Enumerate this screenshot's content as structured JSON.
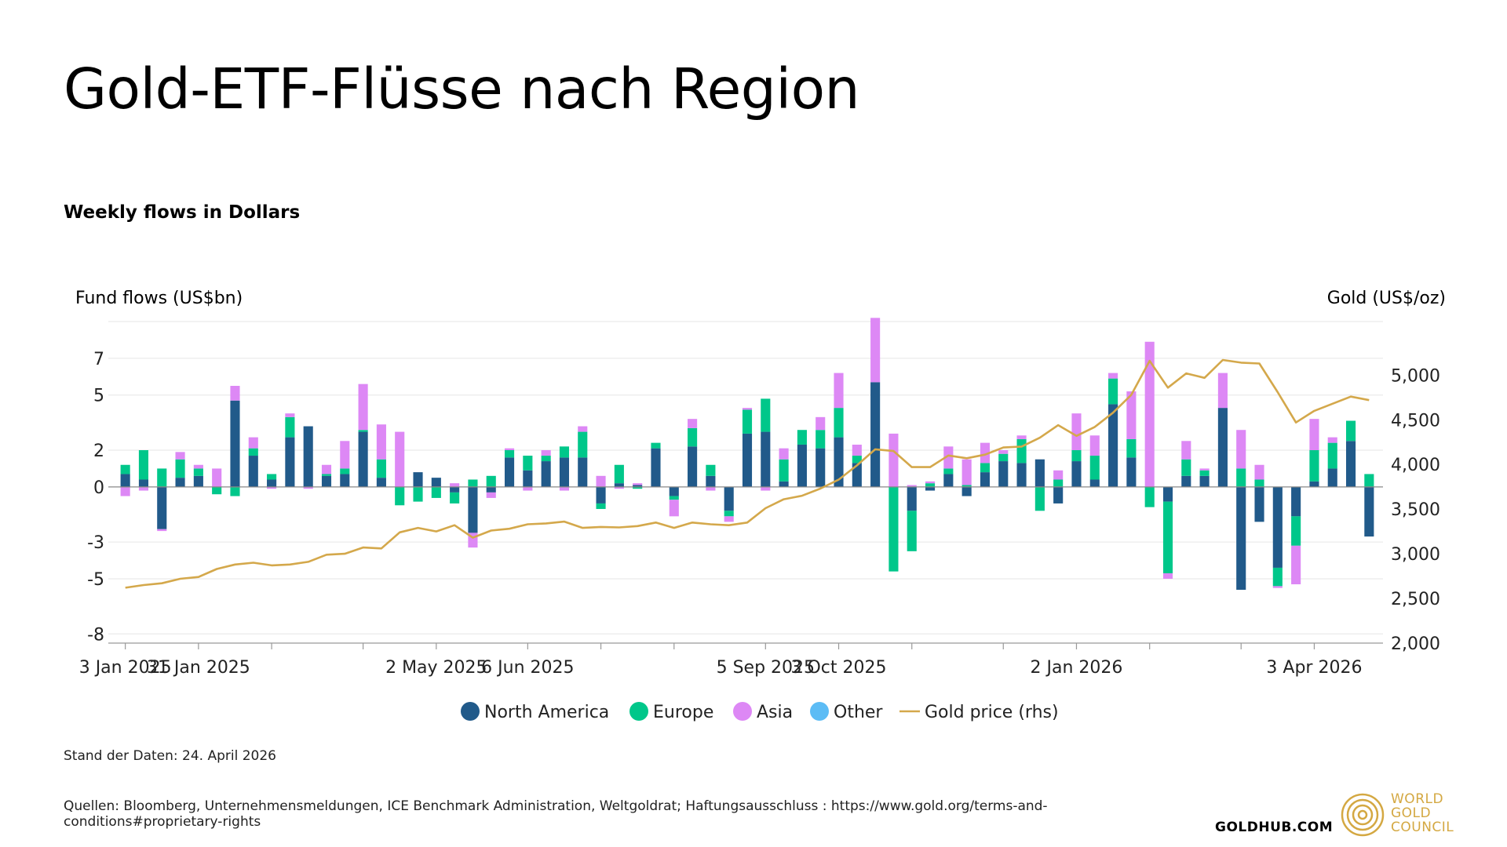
{
  "header": {
    "title": "Gold-ETF-Flüsse nach Region",
    "subtitle": "Weekly flows in Dollars"
  },
  "footer": {
    "data_date": "Stand der Daten: 24. April 2026",
    "sources": "Quellen: Bloomberg, Unternehmensmeldungen, ICE Benchmark Administration, Weltgoldrat; Haftungsausschluss : https://www.gold.org/terms-and-conditions#proprietary-rights",
    "site": "GOLDHUB.COM",
    "logo_lines": [
      "WORLD",
      "GOLD",
      "COUNCIL"
    ]
  },
  "chart_data": {
    "type": "bar",
    "stacked": true,
    "grid": true,
    "legend_position": "bottom",
    "ylabel": "Fund flows (US$bn)",
    "y2label": "Gold (US$/oz)",
    "ylim": [
      -8.5,
      9
    ],
    "y_ticks": [
      -8,
      -5,
      -3,
      0,
      2,
      5,
      7
    ],
    "y_tick_labels": [
      "-8",
      "-5",
      "-3",
      "0",
      "2",
      "5",
      "7"
    ],
    "y2lim": [
      2000,
      5600
    ],
    "y2_ticks": [
      2000,
      2500,
      3000,
      3500,
      4000,
      4500,
      5000
    ],
    "y2_tick_labels": [
      "2,000",
      "2,500",
      "3,000",
      "3,500",
      "4,000",
      "4,500",
      "5,000"
    ],
    "x_labels": [
      {
        "index": 0,
        "label": "3 Jan 2025"
      },
      {
        "index": 4,
        "label": "31 Jan 2025"
      },
      {
        "index": 17,
        "label": "2 May 2025"
      },
      {
        "index": 22,
        "label": "6 Jun 2025"
      },
      {
        "index": 35,
        "label": "5 Sep 2025"
      },
      {
        "index": 39,
        "label": "3 Oct 2025"
      },
      {
        "index": 52,
        "label": "2 Jan 2026"
      },
      {
        "index": 65,
        "label": "3 Apr 2026"
      }
    ],
    "x_minor_ticks": [
      8,
      13,
      26,
      30,
      43,
      48,
      56,
      61
    ],
    "series": [
      {
        "name": "North America",
        "color": "#215a8a",
        "values": [
          0.7,
          0.4,
          -2.3,
          0.5,
          0.6,
          0.0,
          4.7,
          1.7,
          0.4,
          2.7,
          3.3,
          0.6,
          0.7,
          3.0,
          0.5,
          0.0,
          0.8,
          0.5,
          -0.3,
          -2.5,
          -0.3,
          1.6,
          0.9,
          1.4,
          1.6,
          1.6,
          -0.9,
          0.2,
          0.1,
          2.1,
          -0.5,
          2.2,
          0.6,
          -1.3,
          2.9,
          3.0,
          0.3,
          2.3,
          2.1,
          2.7,
          1.3,
          5.7,
          0.0,
          -1.3,
          -0.2,
          0.7,
          -0.5,
          0.8,
          1.4,
          1.3,
          1.5,
          -0.9,
          1.4,
          0.4,
          4.5,
          1.6,
          0.0,
          -0.8,
          0.6,
          0.6,
          4.3,
          -5.6,
          -1.9,
          -4.4,
          -1.6,
          0.3,
          1.0,
          2.5,
          -2.7
        ]
      },
      {
        "name": "Europe",
        "color": "#00c78a",
        "values": [
          0.5,
          1.6,
          1.0,
          1.0,
          0.4,
          -0.4,
          -0.5,
          0.4,
          0.3,
          1.1,
          0.0,
          0.1,
          0.3,
          0.1,
          1.0,
          -1.0,
          -0.8,
          -0.6,
          -0.6,
          0.4,
          0.6,
          0.4,
          0.8,
          0.3,
          0.6,
          1.4,
          -0.3,
          1.0,
          -0.1,
          0.3,
          -0.2,
          1.0,
          0.6,
          -0.3,
          1.3,
          1.8,
          1.2,
          0.8,
          1.0,
          1.6,
          0.4,
          0.0,
          -4.6,
          -2.2,
          0.2,
          0.3,
          0.1,
          0.5,
          0.4,
          1.3,
          -1.3,
          0.4,
          0.6,
          1.3,
          1.4,
          1.0,
          -1.1,
          -3.9,
          0.9,
          0.3,
          0.0,
          1.0,
          0.4,
          -1.0,
          -1.6,
          1.7,
          1.4,
          1.1,
          0.7
        ]
      },
      {
        "name": "Asia",
        "color": "#dd88f5",
        "values": [
          -0.5,
          -0.2,
          -0.1,
          0.4,
          0.2,
          1.0,
          0.8,
          0.6,
          -0.1,
          0.2,
          -0.1,
          0.5,
          1.5,
          2.5,
          1.9,
          3.0,
          0.0,
          0.0,
          0.2,
          -0.8,
          -0.3,
          0.1,
          -0.2,
          0.3,
          -0.2,
          0.3,
          0.6,
          -0.1,
          0.1,
          0.0,
          -0.9,
          0.5,
          -0.2,
          -0.3,
          0.1,
          -0.2,
          0.6,
          0.0,
          0.7,
          1.9,
          0.6,
          3.5,
          2.9,
          0.1,
          0.1,
          1.2,
          1.4,
          1.1,
          0.2,
          0.2,
          0.0,
          0.5,
          2.0,
          1.1,
          0.3,
          2.6,
          7.9,
          -0.3,
          1.0,
          0.1,
          1.9,
          2.1,
          0.8,
          -0.1,
          -2.1,
          1.7,
          0.3,
          0.0,
          0.0
        ]
      },
      {
        "name": "Other",
        "color": "#5cbcf5",
        "values": [
          0.0,
          0.0,
          0.0,
          0.0,
          0.0,
          0.0,
          0.0,
          0.0,
          0.0,
          0.0,
          0.0,
          0.0,
          0.0,
          0.0,
          0.0,
          0.0,
          0.0,
          0.0,
          0.0,
          0.0,
          0.0,
          0.0,
          0.0,
          0.0,
          0.0,
          0.0,
          0.0,
          0.0,
          0.0,
          0.0,
          0.0,
          0.0,
          0.0,
          0.0,
          0.0,
          0.0,
          0.0,
          0.0,
          0.0,
          0.0,
          0.0,
          0.0,
          0.0,
          0.0,
          0.0,
          0.0,
          0.0,
          0.0,
          0.0,
          0.0,
          0.0,
          0.0,
          0.0,
          0.0,
          0.0,
          0.0,
          0.0,
          0.0,
          0.0,
          0.0,
          0.0,
          0.0,
          0.0,
          0.0,
          0.0,
          0.0,
          0.0,
          0.0,
          0.0
        ]
      }
    ],
    "line": {
      "name": "Gold price (rhs)",
      "color": "#d4a84b",
      "values": [
        2620,
        2650,
        2670,
        2720,
        2740,
        2830,
        2880,
        2900,
        2870,
        2880,
        2910,
        2990,
        3000,
        3070,
        3060,
        3240,
        3290,
        3250,
        3320,
        3180,
        3260,
        3280,
        3330,
        3340,
        3360,
        3290,
        3300,
        3295,
        3310,
        3350,
        3290,
        3350,
        3330,
        3320,
        3350,
        3510,
        3610,
        3650,
        3730,
        3830,
        3990,
        4170,
        4150,
        3970,
        3970,
        4100,
        4070,
        4110,
        4190,
        4200,
        4300,
        4440,
        4320,
        4420,
        4580,
        4780,
        5160,
        4860,
        5020,
        4970,
        5170,
        5140,
        5130,
        4810,
        4470,
        4600,
        4680,
        4760,
        4720
      ]
    }
  }
}
